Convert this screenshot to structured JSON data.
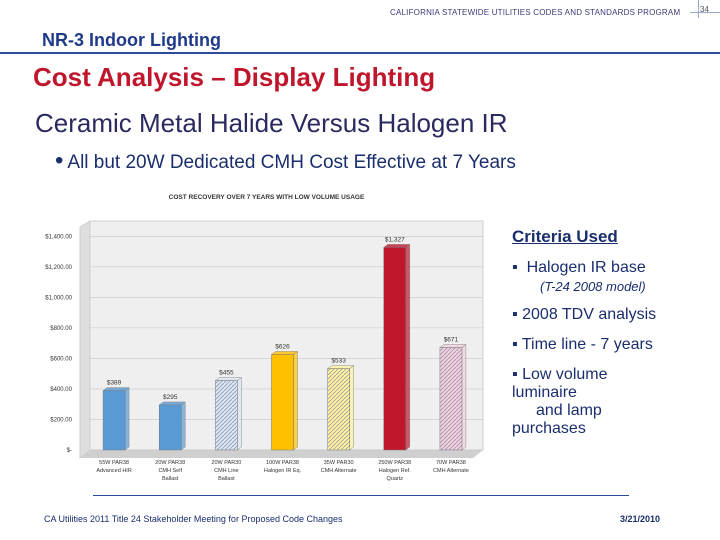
{
  "header": {
    "program": "CALIFORNIA STATEWIDE UTILITIES CODES AND STANDARDS PROGRAM",
    "page_number": "34",
    "section": "NR-3 Indoor Lighting"
  },
  "slide": {
    "title": "Cost Analysis – Display Lighting",
    "subtitle": "Ceramic Metal Halide Versus Halogen IR",
    "bullet": "All but 20W Dedicated CMH Cost Effective at 7 Years"
  },
  "criteria": {
    "heading": "Criteria Used",
    "item1": "Halogen IR base",
    "item1_note": "(T-24 2008 model)",
    "item2": "2008 TDV analysis",
    "item3": "Time line - 7 years",
    "item4_l1": "Low volume",
    "item4_l2": "luminaire",
    "item4_l3": "and lamp",
    "item4_l4": "purchases"
  },
  "footer": {
    "left": "CA Utilities 2011 Title 24 Stakeholder Meeting for Proposed Code Changes",
    "right": "3/21/2010"
  },
  "chart_data": {
    "type": "bar",
    "title": "COST RECOVERY OVER 7 YEARS WITH LOW VOLUME USAGE",
    "yticks": [
      "$1,400.00",
      "$1,200.00",
      "$1,000.00",
      "$800.00",
      "$600.00",
      "$400.00",
      "$200.00",
      "$-"
    ],
    "ylim": [
      0,
      1500
    ],
    "categories": [
      {
        "l1": "55W PAR38",
        "l2": "Advanced HIR",
        "l3": ""
      },
      {
        "l1": "20W PAR38",
        "l2": "CMH Self",
        "l3": "Ballast"
      },
      {
        "l1": "20W PAR30",
        "l2": "CMH Line",
        "l3": "Ballast"
      },
      {
        "l1": "100W PAR38",
        "l2": "Halogen IR Eq.",
        "l3": ""
      },
      {
        "l1": "35W PAR30",
        "l2": "CMH Alternate",
        "l3": ""
      },
      {
        "l1": "250W PAR38",
        "l2": "Halogen Ref.",
        "l3": "Quartz"
      },
      {
        "l1": "70W PAR38",
        "l2": "CMH Alternate",
        "l3": ""
      }
    ],
    "values": [
      389,
      295,
      455,
      626,
      533,
      1327,
      671
    ],
    "labels": [
      "$389",
      "$295",
      "$455",
      "$626",
      "$533",
      "$1,327",
      "$671"
    ],
    "colors": [
      "#5b9bd5",
      "#5b9bd5",
      "#d8e6f5",
      "#ffc000",
      "#fff2a0",
      "#c0162c",
      "#f2d0de"
    ],
    "hatched": [
      false,
      false,
      true,
      false,
      true,
      false,
      true
    ],
    "grid": true
  }
}
